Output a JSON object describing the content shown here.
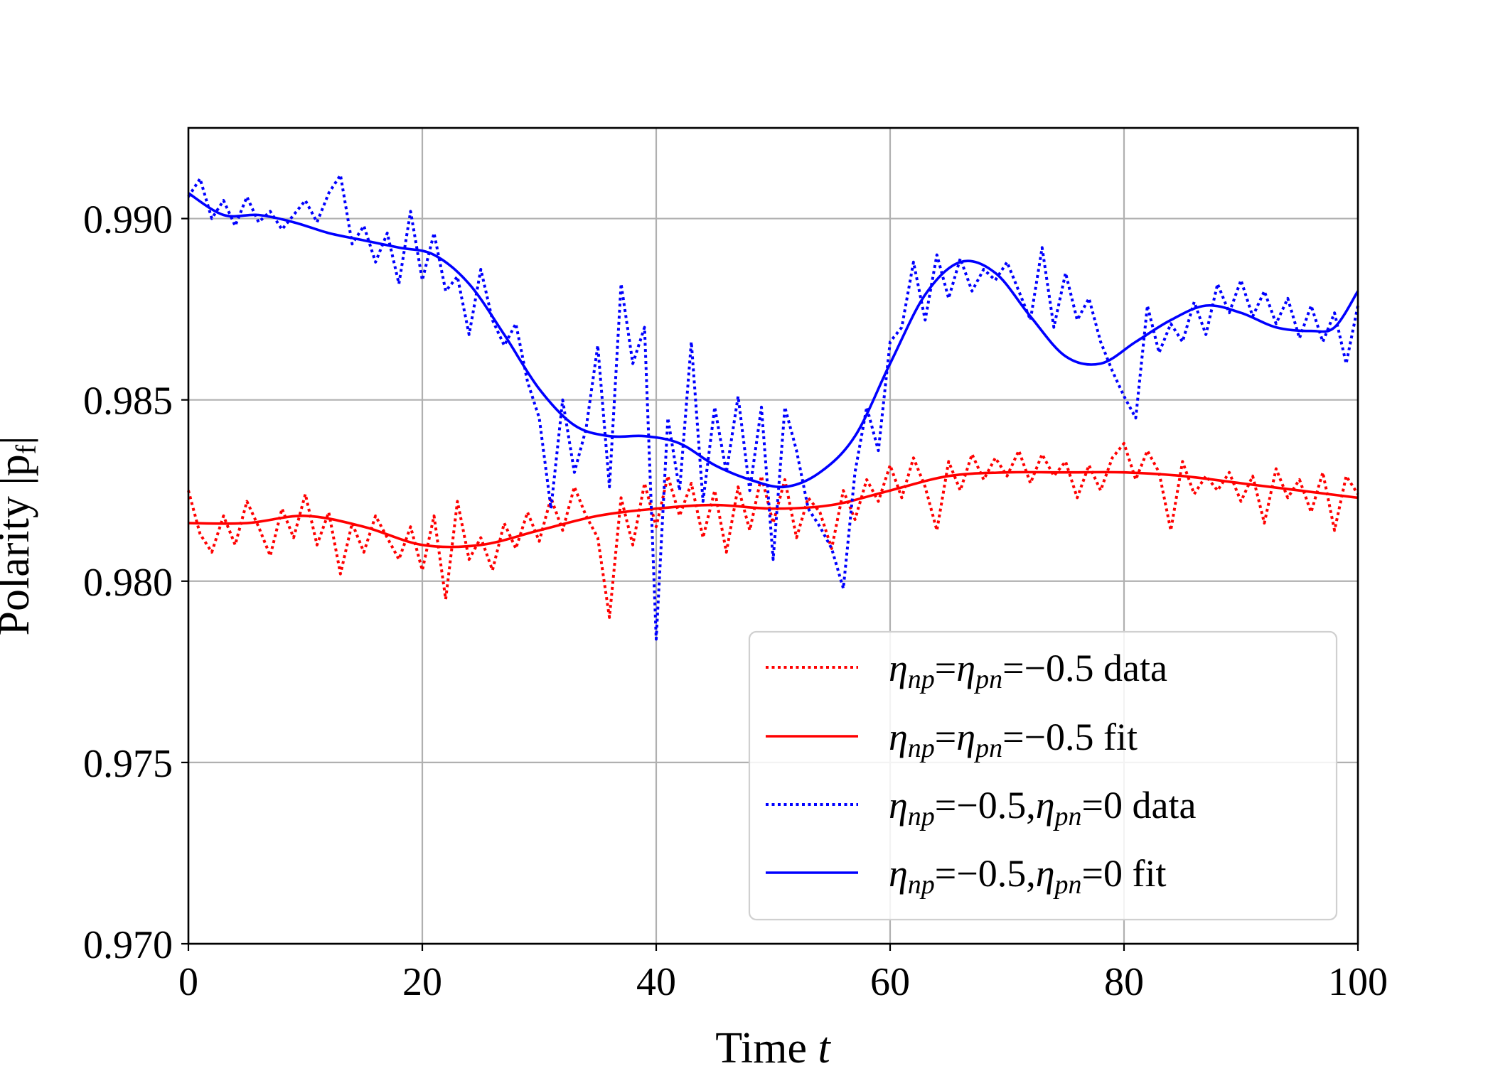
{
  "chart_data": {
    "type": "line",
    "title": "",
    "xlabel": "Time",
    "xlabel_symbol": "t",
    "ylabel": "Polarity |p",
    "ylabel_sub": "f",
    "ylabel_close": "|",
    "xlim": [
      0,
      100
    ],
    "ylim": [
      0.97,
      0.9925
    ],
    "xticks": [
      0,
      20,
      40,
      60,
      80,
      100
    ],
    "xtick_labels": [
      "0",
      "20",
      "40",
      "60",
      "80",
      "100"
    ],
    "yticks": [
      0.97,
      0.975,
      0.98,
      0.985,
      0.99
    ],
    "ytick_labels": [
      "0.970",
      "0.975",
      "0.980",
      "0.985",
      "0.990"
    ],
    "grid": true,
    "legend_position": "lower-right",
    "series": [
      {
        "name": "red-data",
        "legend": {
          "a": "η",
          "asub": "np",
          "eq1": "=",
          "b": "η",
          "bsub": "pn",
          "eq2": "=",
          "val": "−0.5",
          "tail": " data"
        },
        "color": "#ff0000",
        "style": "dotted",
        "x": [
          0,
          1,
          2,
          3,
          4,
          5,
          6,
          7,
          8,
          9,
          10,
          11,
          12,
          13,
          14,
          15,
          16,
          17,
          18,
          19,
          20,
          21,
          22,
          23,
          24,
          25,
          26,
          27,
          28,
          29,
          30,
          31,
          32,
          33,
          34,
          35,
          36,
          37,
          38,
          39,
          40,
          41,
          42,
          43,
          44,
          45,
          46,
          47,
          48,
          49,
          50,
          51,
          52,
          53,
          54,
          55,
          56,
          57,
          58,
          59,
          60,
          61,
          62,
          63,
          64,
          65,
          66,
          67,
          68,
          69,
          70,
          71,
          72,
          73,
          74,
          75,
          76,
          77,
          78,
          79,
          80,
          81,
          82,
          83,
          84,
          85,
          86,
          87,
          88,
          89,
          90,
          91,
          92,
          93,
          94,
          95,
          96,
          97,
          98,
          99,
          100
        ],
        "values": [
          0.9825,
          0.9813,
          0.9808,
          0.9818,
          0.981,
          0.9822,
          0.9815,
          0.9807,
          0.982,
          0.9812,
          0.9824,
          0.981,
          0.9819,
          0.9802,
          0.9816,
          0.9808,
          0.9818,
          0.9812,
          0.9806,
          0.9815,
          0.9803,
          0.9818,
          0.9795,
          0.9822,
          0.9806,
          0.9812,
          0.9803,
          0.9816,
          0.9809,
          0.9819,
          0.9811,
          0.9823,
          0.9814,
          0.9826,
          0.9818,
          0.9812,
          0.979,
          0.9823,
          0.981,
          0.9827,
          0.9815,
          0.9829,
          0.9818,
          0.9827,
          0.9812,
          0.9825,
          0.9808,
          0.9826,
          0.9814,
          0.9829,
          0.9816,
          0.9828,
          0.9812,
          0.9823,
          0.9819,
          0.9809,
          0.9825,
          0.9817,
          0.9828,
          0.9822,
          0.9832,
          0.9823,
          0.9834,
          0.9826,
          0.9814,
          0.9833,
          0.9825,
          0.9835,
          0.9828,
          0.9834,
          0.9829,
          0.9836,
          0.9827,
          0.9835,
          0.9829,
          0.9833,
          0.9823,
          0.9832,
          0.9825,
          0.9834,
          0.9838,
          0.9828,
          0.9836,
          0.983,
          0.9814,
          0.9833,
          0.9824,
          0.9829,
          0.9825,
          0.983,
          0.9822,
          0.9829,
          0.9816,
          0.9831,
          0.9823,
          0.9828,
          0.9819,
          0.983,
          0.9814,
          0.9829,
          0.9824
        ]
      },
      {
        "name": "red-fit",
        "legend": {
          "a": "η",
          "asub": "np",
          "eq1": "=",
          "b": "η",
          "bsub": "pn",
          "eq2": "=",
          "val": "−0.5",
          "tail": " fit"
        },
        "color": "#ff0000",
        "style": "solid",
        "x": [
          0,
          5,
          10,
          15,
          20,
          25,
          30,
          35,
          40,
          45,
          50,
          55,
          60,
          65,
          70,
          75,
          80,
          85,
          90,
          95,
          100
        ],
        "values": [
          0.9816,
          0.9816,
          0.9818,
          0.9815,
          0.981,
          0.981,
          0.9814,
          0.9818,
          0.982,
          0.9821,
          0.982,
          0.9821,
          0.9825,
          0.9829,
          0.983,
          0.983,
          0.983,
          0.9829,
          0.9827,
          0.9825,
          0.9823
        ]
      },
      {
        "name": "blue-data",
        "legend": {
          "a": "η",
          "asub": "np",
          "eq1": "=",
          "val": "−0.5,",
          "b": "η",
          "bsub": "pn",
          "eq2": "=",
          "val2": "0",
          "tail": " data"
        },
        "color": "#0000ff",
        "style": "dotted",
        "x": [
          0,
          1,
          2,
          3,
          4,
          5,
          6,
          7,
          8,
          9,
          10,
          11,
          12,
          13,
          14,
          15,
          16,
          17,
          18,
          19,
          20,
          21,
          22,
          23,
          24,
          25,
          26,
          27,
          28,
          29,
          30,
          31,
          32,
          33,
          34,
          35,
          36,
          37,
          38,
          39,
          40,
          41,
          42,
          43,
          44,
          45,
          46,
          47,
          48,
          49,
          50,
          51,
          52,
          53,
          54,
          55,
          56,
          57,
          58,
          59,
          60,
          61,
          62,
          63,
          64,
          65,
          66,
          67,
          68,
          69,
          70,
          71,
          72,
          73,
          74,
          75,
          76,
          77,
          78,
          79,
          80,
          81,
          82,
          83,
          84,
          85,
          86,
          87,
          88,
          89,
          90,
          91,
          92,
          93,
          94,
          95,
          96,
          97,
          98,
          99,
          100
        ],
        "values": [
          0.9906,
          0.9911,
          0.99,
          0.9905,
          0.9898,
          0.9906,
          0.9899,
          0.9902,
          0.9897,
          0.9901,
          0.9905,
          0.9899,
          0.9907,
          0.9912,
          0.9893,
          0.9898,
          0.9888,
          0.9896,
          0.9882,
          0.9902,
          0.9883,
          0.9896,
          0.988,
          0.9884,
          0.9868,
          0.9886,
          0.9872,
          0.9865,
          0.9871,
          0.9855,
          0.9845,
          0.982,
          0.985,
          0.983,
          0.9842,
          0.9865,
          0.9826,
          0.9882,
          0.986,
          0.987,
          0.9784,
          0.9845,
          0.9825,
          0.9866,
          0.9822,
          0.9848,
          0.983,
          0.9851,
          0.9825,
          0.9848,
          0.9806,
          0.9848,
          0.9836,
          0.982,
          0.9815,
          0.9809,
          0.9798,
          0.983,
          0.9848,
          0.9836,
          0.9866,
          0.987,
          0.9888,
          0.9872,
          0.989,
          0.9878,
          0.9889,
          0.988,
          0.9886,
          0.9883,
          0.9888,
          0.988,
          0.9872,
          0.9892,
          0.987,
          0.9885,
          0.9872,
          0.9878,
          0.9866,
          0.9858,
          0.9851,
          0.9845,
          0.9876,
          0.9863,
          0.9871,
          0.9866,
          0.9877,
          0.9868,
          0.9882,
          0.9874,
          0.9883,
          0.9873,
          0.988,
          0.9871,
          0.9878,
          0.9867,
          0.9876,
          0.9866,
          0.9874,
          0.986,
          0.9876
        ]
      },
      {
        "name": "blue-fit",
        "legend": {
          "a": "η",
          "asub": "np",
          "eq1": "=",
          "val": "−0.5,",
          "b": "η",
          "bsub": "pn",
          "eq2": "=",
          "val2": "0",
          "tail": " fit"
        },
        "color": "#0000ff",
        "style": "solid",
        "x": [
          0,
          3,
          6,
          9,
          12,
          15,
          18,
          21,
          24,
          27,
          30,
          33,
          36,
          39,
          42,
          45,
          48,
          51,
          54,
          57,
          60,
          63,
          66,
          69,
          72,
          75,
          78,
          81,
          84,
          87,
          90,
          93,
          96,
          98,
          100
        ],
        "values": [
          0.9907,
          0.9901,
          0.9901,
          0.9899,
          0.9896,
          0.9894,
          0.9892,
          0.989,
          0.9882,
          0.9868,
          0.9853,
          0.9843,
          0.984,
          0.984,
          0.9838,
          0.9832,
          0.9828,
          0.9826,
          0.983,
          0.984,
          0.986,
          0.9879,
          0.9888,
          0.9885,
          0.9873,
          0.9862,
          0.986,
          0.9866,
          0.9872,
          0.9876,
          0.9874,
          0.987,
          0.9869,
          0.987,
          0.988
        ]
      }
    ]
  }
}
